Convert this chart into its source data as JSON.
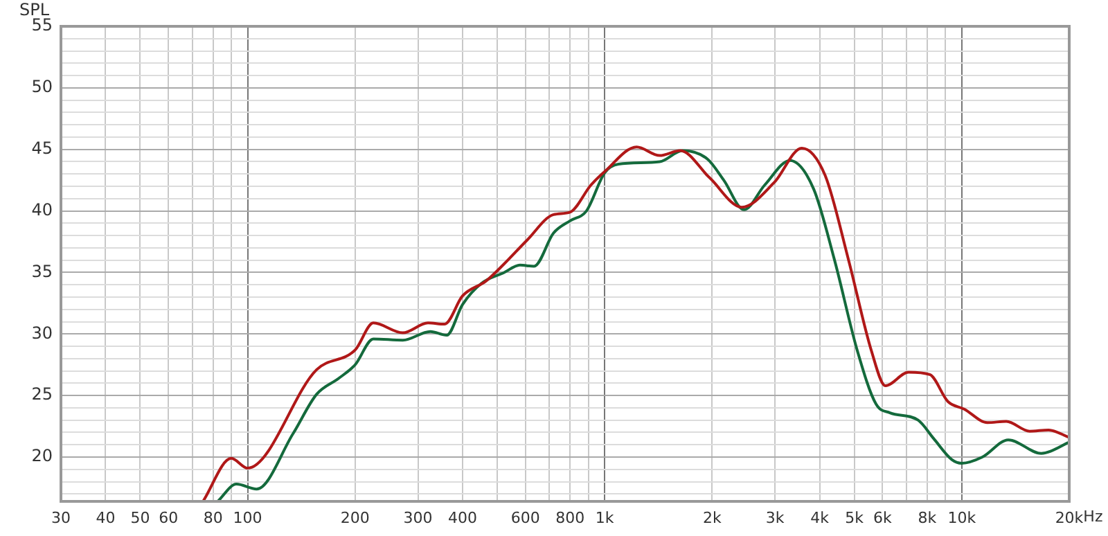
{
  "chart_data": {
    "type": "line",
    "ylabel": "SPL",
    "xlim": [
      30,
      20000
    ],
    "xticks": [
      30,
      40,
      50,
      60,
      {
        "value": 70,
        "label": null
      },
      80,
      {
        "value": 90,
        "label": null
      },
      100,
      200,
      300,
      400,
      {
        "value": 500,
        "label": null
      },
      600,
      {
        "value": 700,
        "label": null
      },
      800,
      {
        "value": 900,
        "label": null
      },
      {
        "value": 1000,
        "label": "1k"
      },
      {
        "value": 2000,
        "label": "2k"
      },
      {
        "value": 3000,
        "label": "3k"
      },
      {
        "value": 4000,
        "label": "4k"
      },
      {
        "value": 5000,
        "label": "5k"
      },
      {
        "value": 6000,
        "label": "6k"
      },
      {
        "value": 7000,
        "label": null
      },
      {
        "value": 8000,
        "label": "8k"
      },
      {
        "value": 9000,
        "label": null
      },
      {
        "value": 10000,
        "label": "10k"
      },
      {
        "value": 20000,
        "label": "20k"
      }
    ],
    "xlabel": "Hz",
    "ylim": [
      16.4,
      55
    ],
    "yticks": [
      {
        "value": 17,
        "label": null
      },
      {
        "value": 18,
        "label": null
      },
      {
        "value": 19,
        "label": null
      },
      20,
      {
        "value": 21,
        "label": null
      },
      {
        "value": 22,
        "label": null
      },
      {
        "value": 23,
        "label": null
      },
      {
        "value": 24,
        "label": null
      },
      25,
      {
        "value": 26,
        "label": null
      },
      {
        "value": 27,
        "label": null
      },
      {
        "value": 28,
        "label": null
      },
      {
        "value": 29,
        "label": null
      },
      30,
      {
        "value": 31,
        "label": null
      },
      {
        "value": 32,
        "label": null
      },
      {
        "value": 33,
        "label": null
      },
      {
        "value": 34,
        "label": null
      },
      35,
      {
        "value": 36,
        "label": null
      },
      {
        "value": 37,
        "label": null
      },
      {
        "value": 38,
        "label": null
      },
      {
        "value": 39,
        "label": null
      },
      40,
      {
        "value": 41,
        "label": null
      },
      {
        "value": 42,
        "label": null
      },
      {
        "value": 43,
        "label": null
      },
      {
        "value": 44,
        "label": null
      },
      45,
      {
        "value": 46,
        "label": null
      },
      {
        "value": 47,
        "label": null
      },
      {
        "value": 48,
        "label": null
      },
      {
        "value": 49,
        "label": null
      },
      50,
      {
        "value": 51,
        "label": null
      },
      {
        "value": 52,
        "label": null
      },
      {
        "value": 53,
        "label": null
      },
      {
        "value": 54,
        "label": null
      },
      55
    ],
    "grid": true,
    "legend": false,
    "log": "x",
    "series": [
      {
        "color": "#b01818",
        "x": [
          75,
          90,
          100,
          156,
          200,
          225,
          272,
          320,
          356,
          400,
          465,
          523,
          605,
          719,
          800,
          915,
          1000,
          1229,
          1426,
          1628,
          1966,
          2421,
          2982,
          3565,
          4142,
          4811,
          5589,
          6114,
          7098,
          8141,
          9154,
          10155,
          11803,
          13330,
          15500,
          17500,
          20000
        ],
        "values": [
          16.4,
          19.9,
          19.1,
          27.1,
          28.7,
          30.9,
          30.1,
          30.9,
          30.8,
          33.1,
          34.3,
          35.7,
          37.6,
          39.7,
          39.9,
          42.1,
          43.2,
          45.2,
          44.5,
          44.9,
          42.7,
          40.3,
          42.3,
          45.1,
          42.9,
          36.1,
          28.6,
          25.8,
          26.9,
          26.7,
          24.5,
          23.9,
          22.8,
          22.9,
          22.1,
          22.2,
          21.6
        ]
      },
      {
        "color": "#146a3c",
        "x": [
          82.5,
          93,
          106,
          134,
          156,
          180,
          200,
          225,
          272,
          325,
          361,
          400,
          451,
          523,
          579,
          634,
          719,
          800,
          889,
          1000,
          1093,
          1426,
          1653,
          1943,
          2155,
          2457,
          2806,
          3305,
          3846,
          4394,
          5105,
          5755,
          6293,
          7547,
          8347,
          9376,
          10000,
          11420,
          13500,
          16700,
          20000
        ],
        "values": [
          16.4,
          17.8,
          17.4,
          21.9,
          25.1,
          26.4,
          27.5,
          29.6,
          29.5,
          30.2,
          29.9,
          32.4,
          34.1,
          35.0,
          35.6,
          35.5,
          38.2,
          39.2,
          40.0,
          43.1,
          43.8,
          44.0,
          44.9,
          44.2,
          42.5,
          40.1,
          42.1,
          44.1,
          41.8,
          36.1,
          28.6,
          24.3,
          23.6,
          23.0,
          21.5,
          19.8,
          19.5,
          20.0,
          21.4,
          20.3,
          21.2
        ]
      }
    ]
  }
}
